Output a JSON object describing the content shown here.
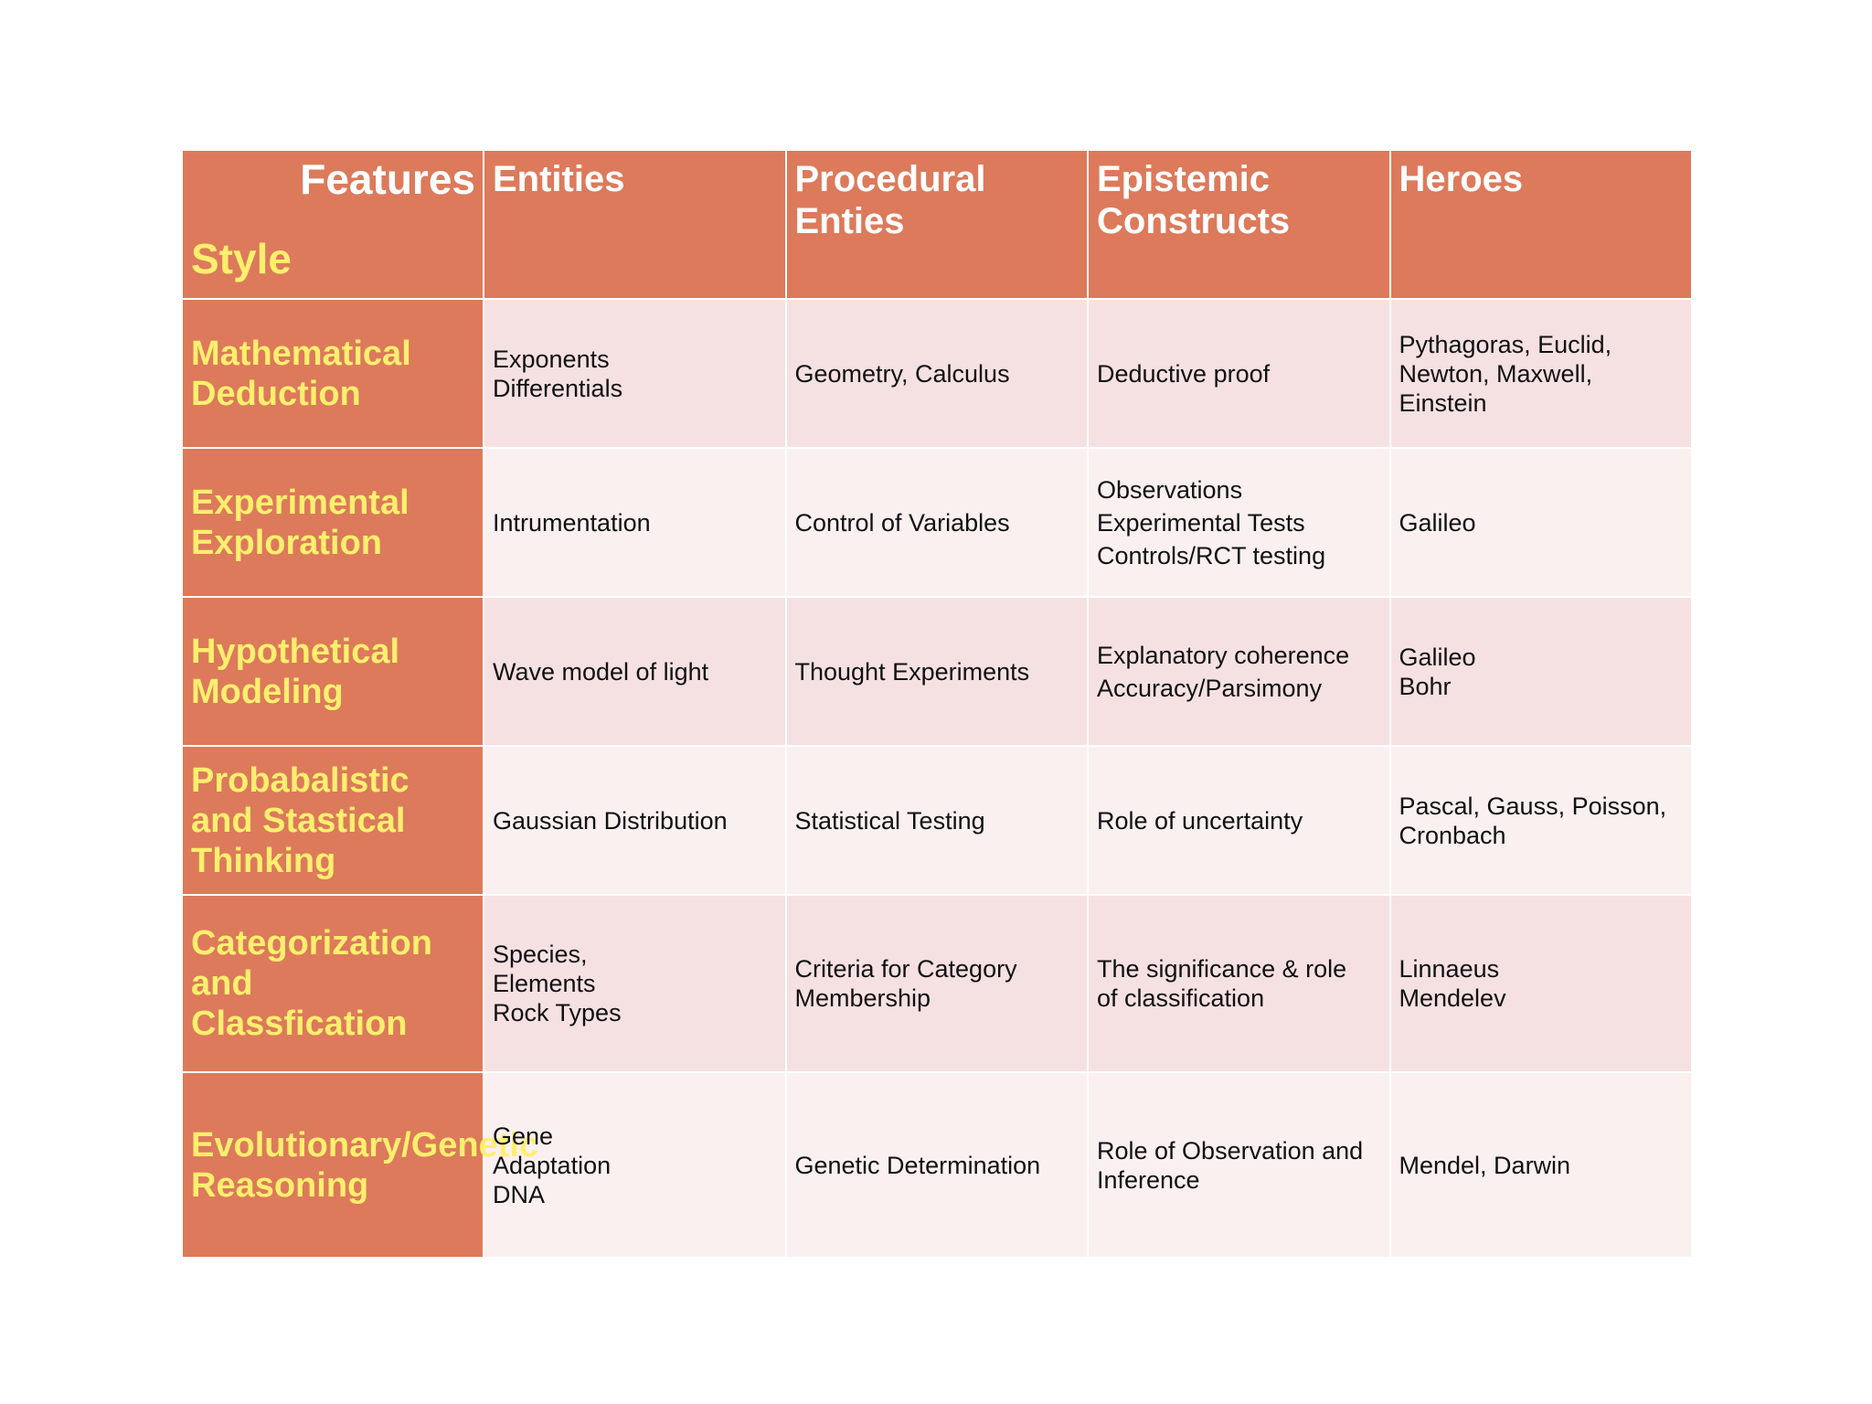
{
  "corner": {
    "features": "Features",
    "style": "Style"
  },
  "columns": [
    "Entities",
    "Procedural Enties",
    "Epistemic Constructs",
    "Heroes"
  ],
  "rows": [
    {
      "style": "Mathematical Deduction",
      "entities": [
        "Exponents",
        "Differentials"
      ],
      "procedural": [
        "Geometry, Calculus"
      ],
      "epistemic": [
        "Deductive proof"
      ],
      "heroes": [
        "Pythagoras, Euclid,",
        "Newton, Maxwell,",
        "Einstein"
      ]
    },
    {
      "style": "Experimental Exploration",
      "entities": [
        "Intrumentation"
      ],
      "procedural": [
        "Control of Variables"
      ],
      "epistemic": [
        "Observations",
        "Experimental Tests",
        "Controls/RCT testing"
      ],
      "heroes": [
        "Galileo"
      ]
    },
    {
      "style": "Hypothetical Modeling",
      "entities": [
        "Wave model of light"
      ],
      "procedural": [
        "Thought Experiments"
      ],
      "epistemic": [
        "Explanatory coherence",
        "Accuracy/Parsimony"
      ],
      "heroes": [
        "Galileo",
        "Bohr"
      ]
    },
    {
      "style": "Probabalistic and Stastical Thinking",
      "entities": [
        "Gaussian Distribution"
      ],
      "procedural": [
        "Statistical Testing"
      ],
      "epistemic": [
        "Role of uncertainty"
      ],
      "heroes": [
        "Pascal, Gauss, Poisson,",
        "Cronbach"
      ]
    },
    {
      "style": "Categorization and Classfication",
      "entities": [
        "Species,",
        "Elements",
        "Rock Types"
      ],
      "procedural": [
        "Criteria for Category",
        "Membership"
      ],
      "epistemic": [
        "The significance & role",
        "of classification"
      ],
      "heroes": [
        "Linnaeus",
        "Mendelev"
      ]
    },
    {
      "style": "Evolutionary/Genetic Reasoning",
      "entities": [
        "Gene",
        "Adaptation",
        "DNA"
      ],
      "procedural": [
        "Genetic Determination"
      ],
      "epistemic": [
        "Role of Observation and",
        "Inference"
      ],
      "heroes": [
        "Mendel, Darwin"
      ]
    }
  ]
}
